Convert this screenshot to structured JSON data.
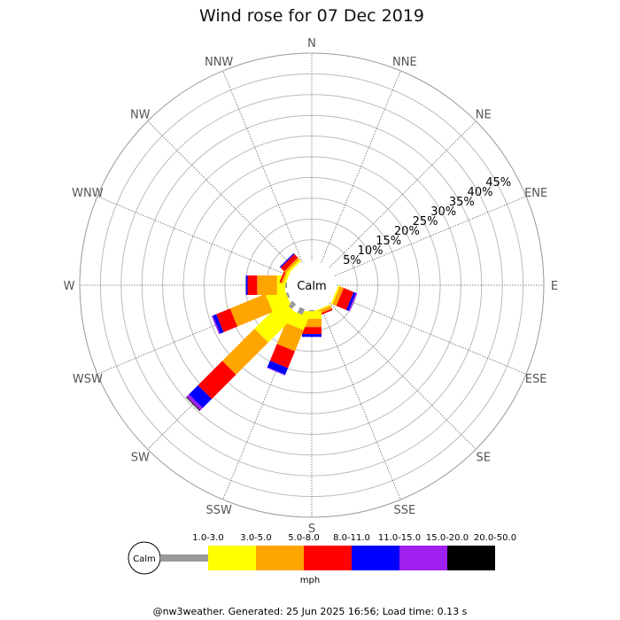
{
  "chart_data": {
    "type": "wind-rose",
    "title": "Wind rose for 07 Dec 2019",
    "directions": [
      "N",
      "NNE",
      "NE",
      "ENE",
      "E",
      "ESE",
      "SE",
      "SSE",
      "S",
      "SSW",
      "SW",
      "WSW",
      "W",
      "WNW",
      "NW",
      "NNW"
    ],
    "ring_labels": [
      "5%",
      "10%",
      "15%",
      "20%",
      "25%",
      "30%",
      "35%",
      "40%",
      "45%"
    ],
    "ring_values": [
      5,
      10,
      15,
      20,
      25,
      30,
      35,
      40,
      45
    ],
    "radial_max_percent": 50,
    "calm_label": "Calm",
    "speed_unit": "mph",
    "speed_bins": [
      {
        "label": "1.0-3.0",
        "color": "#999999"
      },
      {
        "label": "3.0-5.0",
        "color": "#ffff00"
      },
      {
        "label": "5.0-8.0",
        "color": "#ffa500"
      },
      {
        "label": "8.0-11.0",
        "color": "#ff0000"
      },
      {
        "label": "11.0-15.0",
        "color": "#0000ff"
      },
      {
        "label": "15.0-20.0",
        "color": "#a020f0"
      },
      {
        "label": "20.0-50.0",
        "color": "#000000"
      }
    ],
    "series": [
      {
        "direction": "NNE",
        "values": [
          0,
          0,
          0,
          0,
          0,
          0,
          0
        ]
      },
      {
        "direction": "ESE",
        "values": [
          0,
          0.4,
          1.0,
          2.6,
          0.6,
          0.3,
          0
        ]
      },
      {
        "direction": "SE",
        "values": [
          0,
          0,
          0,
          0,
          0,
          0,
          0
        ]
      },
      {
        "direction": "SSE",
        "values": [
          0,
          0.3,
          0.8,
          0.4,
          0,
          0,
          0
        ]
      },
      {
        "direction": "S",
        "values": [
          0.3,
          1.8,
          2.0,
          1.7,
          0.7,
          0,
          0
        ]
      },
      {
        "direction": "SSW",
        "values": [
          1.5,
          3.3,
          5.5,
          4.4,
          1.7,
          0.2,
          0
        ]
      },
      {
        "direction": "SW",
        "values": [
          1.5,
          9.7,
          11.0,
          8.3,
          3.1,
          0.8,
          0.2
        ]
      },
      {
        "direction": "WSW",
        "values": [
          0.5,
          4.7,
          9.2,
          3.6,
          0.9,
          0.3,
          0
        ]
      },
      {
        "direction": "W",
        "values": [
          0.4,
          2.0,
          4.8,
          2.3,
          0.4,
          0,
          0
        ]
      },
      {
        "direction": "WNW",
        "values": [
          0,
          0.6,
          0.5,
          0.4,
          0,
          0,
          0
        ]
      },
      {
        "direction": "NW",
        "values": [
          0,
          0.5,
          0.6,
          1.2,
          0.3,
          0,
          0
        ]
      }
    ]
  },
  "footer": "@nw3weather. Generated: 25 Jun 2025 16:56; Load time: 0.13 s"
}
